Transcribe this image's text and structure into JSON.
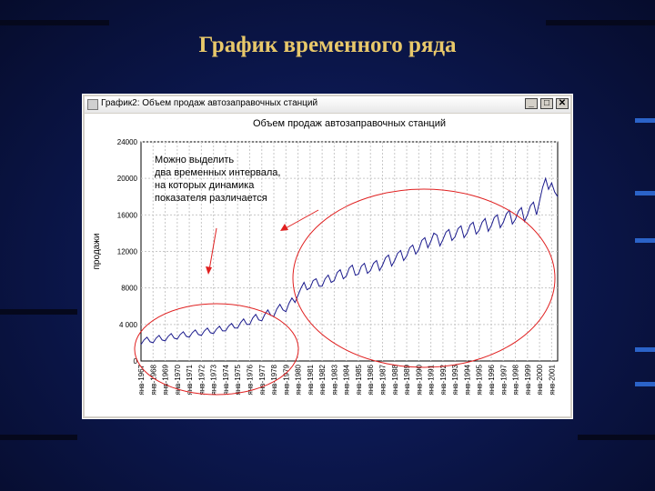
{
  "slide": {
    "title": "График временного ряда"
  },
  "window": {
    "title": "График2: Объем продаж автозаправочных станций",
    "minimize": "_",
    "maximize": "□",
    "close": "✕"
  },
  "colors": {
    "background": "#0c1850",
    "title": "#e8c86a",
    "series": "#1a1a8c",
    "ellipse": "#e02020",
    "arrow": "#e02020"
  },
  "annotation": {
    "lines": [
      "Можно выделить",
      "два временных интервала,",
      "на которых динамика",
      "показателя различается"
    ]
  },
  "chart_data": {
    "type": "line",
    "title": "Объем продаж автозаправочных станций",
    "ylabel": "продажи",
    "xlabel": "",
    "ylim": [
      0,
      24000
    ],
    "yticks": [
      0,
      4000,
      8000,
      12000,
      16000,
      20000,
      24000
    ],
    "ytick_labels": [
      "0",
      "4 000",
      "8000",
      "12000",
      "16000",
      "20000",
      "24000"
    ],
    "xtick_labels": [
      "янв-1967",
      "янв-1968",
      "янв-1969",
      "янв-1970",
      "янв-1971",
      "янв-1972",
      "янв-1973",
      "янв-1974",
      "янв-1975",
      "янв-1976",
      "янв-1977",
      "янв-1978",
      "янв-1979",
      "янв-1980",
      "янв-1981",
      "янв-1982",
      "янв-1983",
      "янв-1984",
      "янв-1985",
      "янв-1986",
      "янв-1987",
      "янв-1988",
      "янв-1989",
      "янв-1990",
      "янв-1991",
      "янв-1992",
      "янв-1993",
      "янв-1994",
      "янв-1995",
      "янв-1996",
      "янв-1997",
      "янв-1998",
      "янв-1999",
      "янв-2000",
      "янв-2001"
    ],
    "grid": true,
    "series": [
      {
        "x": [
          1967.0,
          1967.25,
          1967.5,
          1967.75,
          1968.0,
          1968.25,
          1968.5,
          1968.75,
          1969.0,
          1969.25,
          1969.5,
          1969.75,
          1970.0,
          1970.25,
          1970.5,
          1970.75,
          1971.0,
          1971.25,
          1971.5,
          1971.75,
          1972.0,
          1972.25,
          1972.5,
          1972.75,
          1973.0,
          1973.25,
          1973.5,
          1973.75,
          1974.0,
          1974.25,
          1974.5,
          1974.75,
          1975.0,
          1975.25,
          1975.5,
          1975.75,
          1976.0,
          1976.25,
          1976.5,
          1976.75,
          1977.0,
          1977.25,
          1977.5,
          1977.75,
          1978.0,
          1978.25,
          1978.5,
          1978.75,
          1979.0,
          1979.25,
          1979.5,
          1979.75,
          1980.0,
          1980.25,
          1980.5,
          1980.75,
          1981.0,
          1981.25,
          1981.5,
          1981.75,
          1982.0,
          1982.25,
          1982.5,
          1982.75,
          1983.0,
          1983.25,
          1983.5,
          1983.75,
          1984.0,
          1984.25,
          1984.5,
          1984.75,
          1985.0,
          1985.25,
          1985.5,
          1985.75,
          1986.0,
          1986.25,
          1986.5,
          1986.75,
          1987.0,
          1987.25,
          1987.5,
          1987.75,
          1988.0,
          1988.25,
          1988.5,
          1988.75,
          1989.0,
          1989.25,
          1989.5,
          1989.75,
          1990.0,
          1990.25,
          1990.5,
          1990.75,
          1991.0,
          1991.25,
          1991.5,
          1991.75,
          1992.0,
          1992.25,
          1992.5,
          1992.75,
          1993.0,
          1993.25,
          1993.5,
          1993.75,
          1994.0,
          1994.25,
          1994.5,
          1994.75,
          1995.0,
          1995.25,
          1995.5,
          1995.75,
          1996.0,
          1996.25,
          1996.5,
          1996.75,
          1997.0,
          1997.25,
          1997.5,
          1997.75,
          1998.0,
          1998.25,
          1998.5,
          1998.75,
          1999.0,
          1999.25,
          1999.5,
          1999.75,
          2000.0,
          2000.25,
          2000.5,
          2000.75,
          2001.0,
          2001.25,
          2001.5
        ],
        "values": [
          1800,
          2300,
          2600,
          2100,
          2000,
          2500,
          2800,
          2300,
          2200,
          2700,
          3000,
          2500,
          2400,
          2900,
          3200,
          2700,
          2600,
          3100,
          3400,
          2900,
          2800,
          3300,
          3600,
          3100,
          3000,
          3500,
          3800,
          3300,
          3300,
          3800,
          4100,
          3600,
          3600,
          4200,
          4600,
          4000,
          4000,
          4700,
          5100,
          4500,
          4400,
          5100,
          5600,
          5000,
          4900,
          5700,
          6200,
          5600,
          5400,
          6300,
          6900,
          6400,
          7200,
          8000,
          8600,
          7800,
          8000,
          8800,
          9000,
          8200,
          8200,
          9000,
          9400,
          8600,
          8800,
          9700,
          10000,
          9000,
          9300,
          10200,
          10500,
          9400,
          9500,
          10400,
          10700,
          9600,
          9900,
          10700,
          11000,
          9900,
          10500,
          11300,
          11600,
          10400,
          11000,
          11800,
          12100,
          11000,
          11500,
          12400,
          12700,
          11700,
          12200,
          13200,
          13500,
          12400,
          13100,
          14000,
          13800,
          12600,
          13300,
          14100,
          14400,
          13200,
          13600,
          14500,
          14800,
          13500,
          14000,
          14900,
          15200,
          13900,
          14300,
          15200,
          15600,
          14200,
          14800,
          15700,
          16000,
          14600,
          15200,
          16100,
          16500,
          15000,
          15500,
          16400,
          16800,
          15300,
          16000,
          17000,
          17400,
          16000,
          17500,
          19000,
          20000,
          18800,
          19500,
          18500,
          18000
        ]
      }
    ]
  }
}
